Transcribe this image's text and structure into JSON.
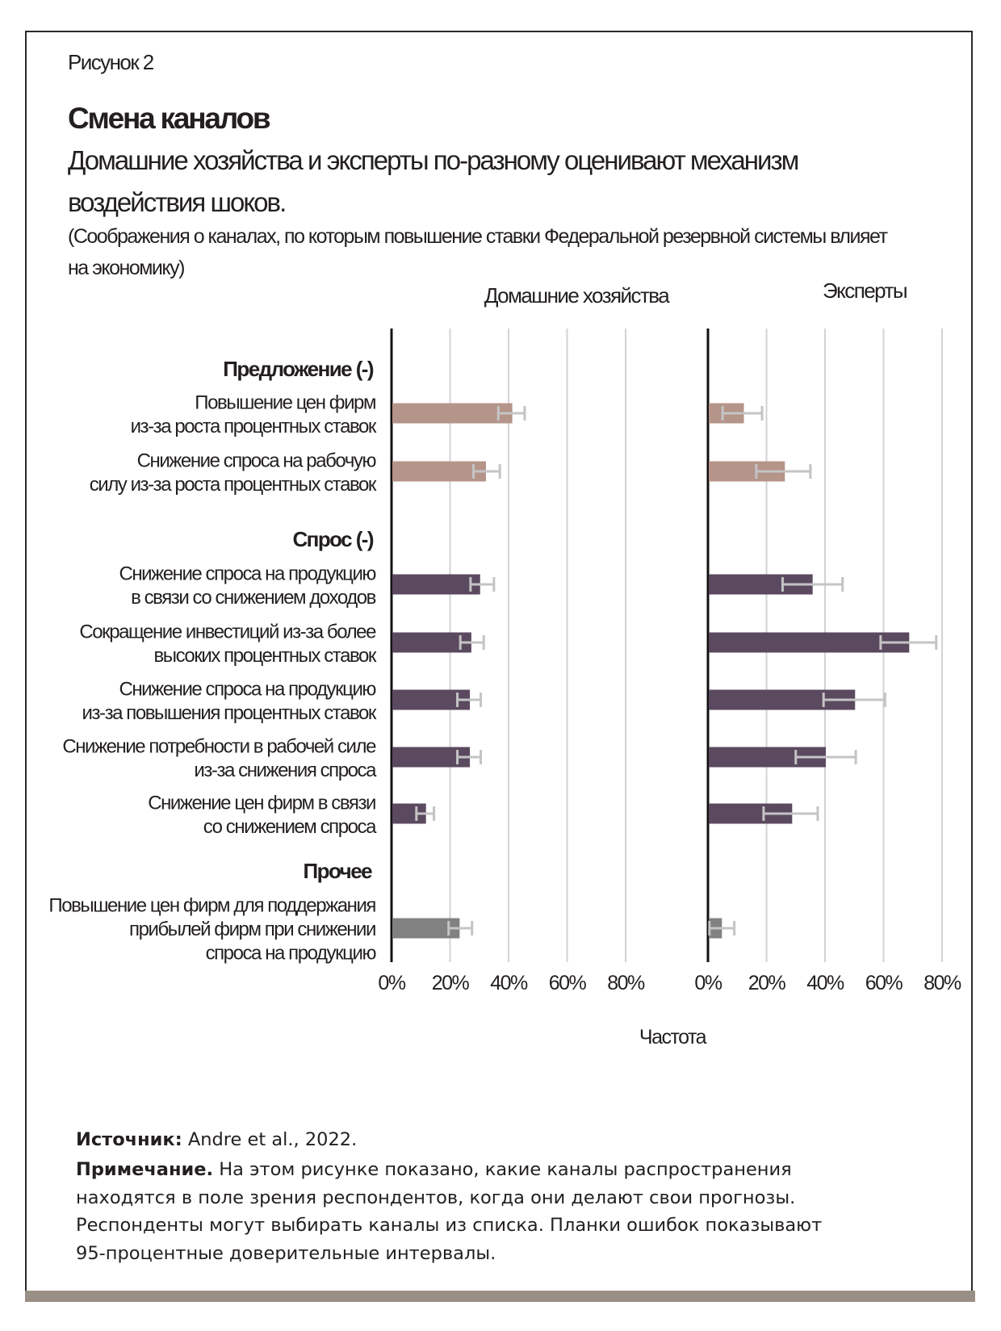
{
  "header": {
    "figure_label": "Рисунок 2",
    "title": "Смена каналов",
    "subtitle_line1": "Домашние хозяйства и эксперты по-разному оценивают механизм",
    "subtitle_line2": "воздействия шоков.",
    "note_line1": "(Соображения о каналах, по которым повышение ставки Федеральной резервной системы влияет",
    "note_line2": "на экономику)"
  },
  "colors": {
    "supply": "#b5948a",
    "demand": "#5b4a5f",
    "other": "#818181",
    "error": "#c4c4c4",
    "grid": "#d3d3d3"
  },
  "chart_data": {
    "type": "bar",
    "orientation": "horizontal",
    "xlabel": "Частота",
    "xlim": [
      0,
      80
    ],
    "ticks": [
      "0%",
      "20%",
      "40%",
      "60%",
      "80%"
    ],
    "grid": true,
    "panels": [
      "Домашние хозяйства",
      "Эксперты"
    ],
    "groups": [
      {
        "name": "Предложение (-)",
        "key": "supply"
      },
      {
        "name": "Спрос (-)",
        "key": "demand"
      },
      {
        "name": "Прочее",
        "key": "other"
      }
    ],
    "categories": [
      {
        "group": "supply",
        "lines": [
          "Повышение цен фирм",
          "из-за роста процентных ставок"
        ]
      },
      {
        "group": "supply",
        "lines": [
          "Снижение спроса на рабочую",
          "силу из-за роста процентных ставок"
        ]
      },
      {
        "group": "demand",
        "lines": [
          "Снижение спроса на продукцию",
          "в связи со снижением доходов"
        ]
      },
      {
        "group": "demand",
        "lines": [
          "Сокращение инвестиций из-за более",
          "высоких процентных ставок"
        ]
      },
      {
        "group": "demand",
        "lines": [
          "Снижение спроса на продукцию",
          "из-за повышения процентных ставок"
        ]
      },
      {
        "group": "demand",
        "lines": [
          "Снижение потребности в рабочей силе",
          "из-за снижения спроса"
        ]
      },
      {
        "group": "demand",
        "lines": [
          "Снижение цен фирм в связи",
          "со снижением спроса"
        ]
      },
      {
        "group": "other",
        "lines": [
          "Повышение цен фирм для поддержания",
          "прибылей фирм при снижении",
          "спроса на продукцию"
        ]
      }
    ],
    "series": [
      {
        "name": "Домашние хозяйства",
        "values": [
          41,
          32,
          30,
          27,
          26.5,
          26.5,
          11.5,
          23
        ],
        "ci_low": [
          36.5,
          28,
          27,
          23.5,
          22.5,
          22.5,
          8.5,
          19.5
        ],
        "ci_high": [
          45.5,
          37,
          35,
          31.5,
          30.5,
          30.5,
          14.5,
          27.5
        ]
      },
      {
        "name": "Эксперты",
        "values": [
          12,
          26,
          35.5,
          68.5,
          50,
          40,
          28.5,
          4.5
        ],
        "ci_low": [
          5,
          16.5,
          25.5,
          59,
          39.5,
          30,
          19,
          0.5
        ],
        "ci_high": [
          18.5,
          35,
          46,
          78,
          60.5,
          50.5,
          37.5,
          9
        ]
      }
    ]
  },
  "footer": {
    "source_label": "Источник:",
    "source_text": " Andre et al., 2022.",
    "note_label": "Примечание.",
    "note_text1": " На этом рисунке показано, какие каналы распространения",
    "note_text2": "находятся в поле зрения респондентов, когда они делают свои прогнозы.",
    "note_text3": "Респонденты могут выбирать каналы из списка. Планки ошибок показывают",
    "note_text4": "95-процентные доверительные интервалы."
  }
}
